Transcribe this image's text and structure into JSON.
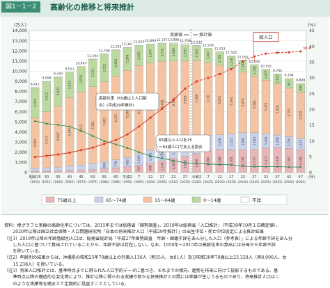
{
  "figure": {
    "label": "図1－1－2",
    "title": "高齢化の推移と将来推計"
  },
  "chart_data": {
    "type": "bar",
    "stacked": true,
    "y_left_unit": "(万人)",
    "y_right_unit": "(%)",
    "ylim": [
      0,
      14000
    ],
    "ylim_right": [
      0,
      45
    ],
    "y_ticks": [
      "0",
      "1,000",
      "2,000",
      "3,000",
      "4,000",
      "5,000",
      "6,000",
      "7,000",
      "8,000",
      "9,000",
      "10,000",
      "11,000",
      "12,000",
      "13,000",
      "14,000"
    ],
    "y_right_ticks": [
      "0",
      "5",
      "10",
      "15",
      "20",
      "25",
      "30",
      "35",
      "40",
      "45"
    ],
    "x_year_labels": [
      "昭和25",
      "30",
      "35",
      "40",
      "45",
      "50",
      "55",
      "60",
      "平成2",
      "7",
      "12",
      "17",
      "22",
      "27",
      "令和2",
      "7",
      "12",
      "17",
      "22",
      "27",
      "32",
      "37",
      "42",
      "47"
    ],
    "x_western_labels": [
      "(1950)",
      "(1955)",
      "(1960)",
      "(1965)",
      "(1970)",
      "(1975)",
      "(1980)",
      "(1985)",
      "(1990)",
      "(1995)",
      "(2000)",
      "(2005)",
      "(2010)",
      "(2015)",
      "(2020)",
      "(2025)",
      "(2030)",
      "(2035)",
      "(2040)",
      "(2045)",
      "(2050)",
      "(2055)",
      "(2060)",
      "(2065)"
    ],
    "x_unit": "(年)",
    "totals": [
      8411,
      9008,
      9430,
      9921,
      10467,
      11194,
      11706,
      12105,
      12361,
      12557,
      12693,
      12777,
      12806,
      12709,
      12532,
      12254,
      11913,
      11522,
      11092,
      10642,
      10192,
      9744,
      9284,
      8808
    ],
    "total_labels": [
      "8,411",
      "9,008",
      "9,430",
      "9,921",
      "10,467",
      "11,194",
      "11,706",
      "12,105",
      "12,361",
      "12,557",
      "12,693",
      "12,777",
      "12,806",
      "12,709",
      "12,532",
      "12,254",
      "11,913",
      "11,522",
      "11,092",
      "10,642",
      "10,192",
      "9,744",
      "9,284",
      "8,808"
    ],
    "series": [
      {
        "name": "75歳以上",
        "color": "#e8b6b6",
        "values": [
          107,
          139,
          163,
          189,
          224,
          284,
          366,
          471,
          597,
          717,
          900,
          1160,
          1407,
          1613,
          1860,
          2180,
          2288,
          2260,
          2239,
          2277,
          2417,
          2446,
          2387,
          2248
        ]
      },
      {
        "name": "65～74歳",
        "color": "#c8d2ea",
        "values": [
          309,
          336,
          376,
          435,
          516,
          602,
          699,
          776,
          892,
          1109,
          1301,
          1407,
          1517,
          1752,
          1746,
          1497,
          1428,
          1522,
          1681,
          1643,
          1424,
          1258,
          1154,
          1133
        ]
      },
      {
        "name": "15～64歳",
        "color": "#f4c4a2",
        "values": [
          4966,
          5517,
          6047,
          6744,
          7212,
          7581,
          7883,
          8251,
          8590,
          8716,
          8638,
          8409,
          8103,
          7629,
          7406,
          7170,
          6875,
          6494,
          5978,
          5584,
          5275,
          5028,
          4793,
          4529
        ]
      },
      {
        "name": "0～14歳",
        "color": "#bcd9a0",
        "values": [
          2979,
          3012,
          2843,
          2553,
          2515,
          2722,
          2751,
          2603,
          2249,
          2001,
          1847,
          1752,
          1680,
          1595,
          1503,
          1407,
          1321,
          1246,
          1194,
          1138,
          1077,
          1012,
          951,
          898
        ]
      },
      {
        "name": "不詳",
        "color": "#ffffff",
        "values": [
          50,
          4,
          1,
          0,
          0,
          5,
          7,
          4,
          33,
          14,
          7,
          49,
          99,
          120,
          17,
          0,
          0,
          0,
          0,
          0,
          0,
          0,
          0,
          0
        ]
      }
    ],
    "bar_value_labels": {
      "s75": [
        "107",
        "139",
        "163",
        "189",
        "224",
        "284",
        "366",
        "471",
        "597",
        "717",
        "900",
        "1,160",
        "1,407",
        "1,613",
        "1,860",
        "2,180",
        "2,288",
        "2,260",
        "2,239",
        "2,277",
        "2,417",
        "2,446",
        "2,387",
        "2,248"
      ],
      "s65": [
        "309",
        "336",
        "376",
        "435",
        "516",
        "602",
        "699",
        "776",
        "892",
        "1,109",
        "1,301",
        "1,407",
        "1,517",
        "1,752",
        "1,746",
        "1,497",
        "1,428",
        "1,522",
        "1,681",
        "1,643",
        "1,424",
        "1,258",
        "1,154",
        "1,133"
      ],
      "s15": [
        "4,966",
        "5,517",
        "6,047",
        "6,744",
        "7,212",
        "7,581",
        "7,883",
        "8,251",
        "8,590",
        "8,716",
        "8,638",
        "8,409",
        "8,103",
        "7,629",
        "7,406",
        "7,170",
        "6,875",
        "6,494",
        "5,978",
        "5,584",
        "5,275",
        "5,028",
        "4,793",
        "4,529"
      ],
      "s0": [
        "2,979",
        "3,012",
        "2,843",
        "2,553",
        "2,515",
        "2,722",
        "2,751",
        "2,603",
        "2,249",
        "2,001",
        "1,847",
        "1,752",
        "1,680",
        "1,595",
        "1,503",
        "1,407",
        "1,321",
        "1,246",
        "1,194",
        "1,138",
        "1,077",
        "1,012",
        "951",
        "898"
      ]
    },
    "aging_rate": [
      4.9,
      5.3,
      5.7,
      6.3,
      7.1,
      7.9,
      9.1,
      10.3,
      12.1,
      14.6,
      17.4,
      20.2,
      23.0,
      26.6,
      28.9,
      30.0,
      31.2,
      32.8,
      35.3,
      36.8,
      37.7,
      38.0,
      38.1,
      38.4
    ],
    "aging_rate_last_label": "38.4",
    "working_age_ratio": [
      59.6,
      61.2,
      64.1,
      68.0,
      68.9,
      67.7,
      67.4,
      68.2,
      69.7,
      69.5,
      68.1,
      66.1,
      63.8,
      60.8,
      59.1,
      58.5,
      57.7,
      56.4,
      53.9,
      52.5,
      51.8,
      51.6,
      51.6,
      51.4
    ],
    "markers": {
      "actual": "実績値",
      "projection": "推計値"
    },
    "annotations": {
      "total_population": "総人口",
      "aging_rate": "高齢化率（65歳以上人口割合）(平成29年推計)",
      "ratio": "65歳以上人口を15～64歳人口で支える割合"
    }
  },
  "legend": [
    {
      "label": "75歳以上",
      "color": "#e8b6b6"
    },
    {
      "label": "65～74歳",
      "color": "#c8d2ea"
    },
    {
      "label": "15～64歳",
      "color": "#f4c4a2"
    },
    {
      "label": "0～14歳",
      "color": "#bcd9a0"
    },
    {
      "label": "不詳",
      "color": "#ffffff"
    }
  ],
  "notes": [
    "資料：棒グラフと実線の高齢化率については、2015年までは総務省「国勢調査」、2018年は総務省「人口推計」（平成30年10月１日確定値）、",
    "　　2020年以降は国立社会保障・人口問題研究所「日本の将来推計人口（平成29年推計）」の出生中位・死亡中位仮定による推計結果",
    "（注1）2018年以降の年齢階級別人口は、総務省統計局「平成27年国勢調査　年齢・国籍不詳をあん分した人口（参考表）」による年齢不詳をあん分",
    "　　した人口に基づいて算出されていることから、年齢不詳は存在しない。なお、1950年～2015年の高齢化率の算出には分母から年齢不詳",
    "　　を除いている。",
    "（注2）年齢別の結果からは、沖縄県の昭和25年70歳以上の外国人136人（男55人、女81人）及び昭和30年70歳以上23,328人（男8,090人、女",
    "　　15,238人）を除いている。",
    "（注3）将来人口推計とは、基準時点までに得られた人口学的データに基づき、それまでの傾向、趨勢を将来に向けて投影するものである。基",
    "　　準時点以降の構造的な変化等により、推計以降に得られる実績や新たな将来推計との間には乖離が生じうるものであり、将来推計人口はこ",
    "　　のような実績等を踏まえて定期的に見直すこととしている。"
  ]
}
